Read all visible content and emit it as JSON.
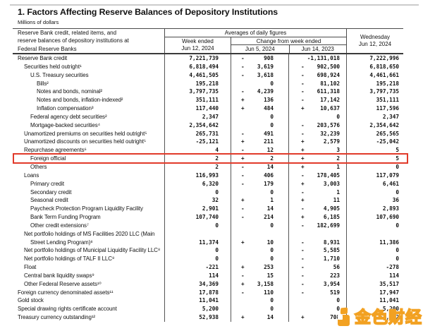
{
  "page": {
    "title": "1. Factors Affecting Reserve Balances of Depository Institutions",
    "units": "Millions of dollars"
  },
  "table": {
    "header": {
      "row_label_lines": [
        "Reserve Bank credit, related items, and",
        "reserve balances of depository institutions at",
        "Federal Reserve Banks"
      ],
      "averages_group": "Averages of daily figures",
      "week_ended_line1": "Week ended",
      "week_ended_line2": "Jun 12, 2024",
      "change_group": "Change from week ended",
      "change_col1": "Jun 5, 2024",
      "change_col2": "Jun 14, 2023",
      "wednesday_line1": "Wednesday",
      "wednesday_line2": "Jun 12, 2024"
    },
    "rows": [
      {
        "label": "Reserve Bank credit",
        "indent": 0,
        "week": "7,221,739",
        "s1": "-",
        "v1": "908",
        "s2": "",
        "v2": "-1,131,018",
        "wed": "7,222,996"
      },
      {
        "label": "Securities held outright¹",
        "indent": 1,
        "week": "6,818,494",
        "s1": "-",
        "v1": "3,619",
        "s2": "-",
        "v2": "902,500",
        "wed": "6,818,650"
      },
      {
        "label": "U.S. Treasury securities",
        "indent": 2,
        "week": "4,461,505",
        "s1": "-",
        "v1": "3,618",
        "s2": "-",
        "v2": "698,924",
        "wed": "4,461,661"
      },
      {
        "label": "Bills²",
        "indent": 3,
        "week": "195,218",
        "s1": "",
        "v1": "0",
        "s2": "-",
        "v2": "81,102",
        "wed": "195,218"
      },
      {
        "label": "Notes and bonds, nominal²",
        "indent": 3,
        "week": "3,797,735",
        "s1": "-",
        "v1": "4,239",
        "s2": "-",
        "v2": "611,318",
        "wed": "3,797,735"
      },
      {
        "label": "Notes and bonds, inflation-indexed²",
        "indent": 3,
        "week": "351,111",
        "s1": "+",
        "v1": "136",
        "s2": "-",
        "v2": "17,142",
        "wed": "351,111"
      },
      {
        "label": "Inflation compensation³",
        "indent": 3,
        "week": "117,440",
        "s1": "+",
        "v1": "484",
        "s2": "+",
        "v2": "10,637",
        "wed": "117,596"
      },
      {
        "label": "Federal agency debt securities²",
        "indent": 2,
        "week": "2,347",
        "s1": "",
        "v1": "0",
        "s2": "",
        "v2": "0",
        "wed": "2,347"
      },
      {
        "label": "Mortgage-backed securities⁴",
        "indent": 2,
        "week": "2,354,642",
        "s1": "",
        "v1": "0",
        "s2": "-",
        "v2": "203,576",
        "wed": "2,354,642"
      },
      {
        "label": "Unamortized premiums on securities held outright⁵",
        "indent": 1,
        "week": "265,731",
        "s1": "-",
        "v1": "491",
        "s2": "-",
        "v2": "32,239",
        "wed": "265,565"
      },
      {
        "label": "Unamortized discounts on securities held outright⁵",
        "indent": 1,
        "week": "-25,121",
        "s1": "+",
        "v1": "211",
        "s2": "+",
        "v2": "2,579",
        "wed": "-25,042"
      },
      {
        "label": "Repurchase agreements⁶",
        "indent": 1,
        "week": "4",
        "s1": "-",
        "v1": "12",
        "s2": "+",
        "v2": "3",
        "wed": "5"
      },
      {
        "label": "Foreign official",
        "indent": 2,
        "week": "2",
        "s1": "+",
        "v1": "2",
        "s2": "+",
        "v2": "2",
        "wed": "5",
        "highlight": true
      },
      {
        "label": "Others",
        "indent": 2,
        "week": "2",
        "s1": "-",
        "v1": "14",
        "s2": "+",
        "v2": "1",
        "wed": "0"
      },
      {
        "label": "Loans",
        "indent": 1,
        "week": "116,993",
        "s1": "-",
        "v1": "406",
        "s2": "-",
        "v2": "178,405",
        "wed": "117,079"
      },
      {
        "label": "Primary credit",
        "indent": 2,
        "week": "6,320",
        "s1": "-",
        "v1": "179",
        "s2": "+",
        "v2": "3,003",
        "wed": "6,461"
      },
      {
        "label": "Secondary credit",
        "indent": 2,
        "week": "0",
        "s1": "",
        "v1": "0",
        "s2": "-",
        "v2": "1",
        "wed": "0"
      },
      {
        "label": "Seasonal credit",
        "indent": 2,
        "week": "32",
        "s1": "+",
        "v1": "1",
        "s2": "+",
        "v2": "11",
        "wed": "36"
      },
      {
        "label": "Paycheck Protection Program Liquidity Facility",
        "indent": 2,
        "week": "2,901",
        "s1": "-",
        "v1": "14",
        "s2": "-",
        "v2": "4,905",
        "wed": "2,893"
      },
      {
        "label": "Bank Term Funding Program",
        "indent": 2,
        "week": "107,740",
        "s1": "-",
        "v1": "214",
        "s2": "+",
        "v2": "6,185",
        "wed": "107,690"
      },
      {
        "label": "Other credit extensions⁷",
        "indent": 2,
        "week": "0",
        "s1": "",
        "v1": "0",
        "s2": "-",
        "v2": "182,699",
        "wed": "0"
      },
      {
        "label": "Net portfolio holdings of MS Facilities 2020 LLC (Main",
        "indent": 1,
        "week": "",
        "s1": "",
        "v1": "",
        "s2": "",
        "v2": "",
        "wed": ""
      },
      {
        "label": "Street Lending Program)⁸",
        "indent": 2,
        "week": "11,374",
        "s1": "+",
        "v1": "10",
        "s2": "-",
        "v2": "8,931",
        "wed": "11,386"
      },
      {
        "label": "Net portfolio holdings of Municipal Liquidity Facility LLC⁸",
        "indent": 1,
        "week": "0",
        "s1": "",
        "v1": "0",
        "s2": "-",
        "v2": "5,585",
        "wed": "0"
      },
      {
        "label": "Net portfolio holdings of TALF II LLC⁸",
        "indent": 1,
        "week": "0",
        "s1": "",
        "v1": "0",
        "s2": "-",
        "v2": "1,710",
        "wed": "0"
      },
      {
        "label": "Float",
        "indent": 1,
        "week": "-221",
        "s1": "+",
        "v1": "253",
        "s2": "-",
        "v2": "56",
        "wed": "-278"
      },
      {
        "label": "Central bank liquidity swaps⁹",
        "indent": 1,
        "week": "114",
        "s1": "-",
        "v1": "15",
        "s2": "-",
        "v2": "223",
        "wed": "114"
      },
      {
        "label": "Other Federal Reserve assets¹⁰",
        "indent": 1,
        "week": "34,369",
        "s1": "+",
        "v1": "3,158",
        "s2": "-",
        "v2": "3,954",
        "wed": "35,517"
      },
      {
        "label": "Foreign currency denominated assets¹¹",
        "indent": 0,
        "week": "17,878",
        "s1": "-",
        "v1": "110",
        "s2": "-",
        "v2": "519",
        "wed": "17,947"
      },
      {
        "label": "Gold stock",
        "indent": 0,
        "week": "11,041",
        "s1": "",
        "v1": "0",
        "s2": "",
        "v2": "0",
        "wed": "11,041"
      },
      {
        "label": "Special drawing rights certificate account",
        "indent": 0,
        "week": "5,200",
        "s1": "",
        "v1": "0",
        "s2": "",
        "v2": "0",
        "wed": "5,200"
      },
      {
        "label": "Treasury currency outstanding¹²",
        "indent": 0,
        "week": "52,938",
        "s1": "+",
        "v1": "14",
        "s2": "+",
        "v2": "708",
        "wed": "52,952"
      }
    ]
  },
  "highlight": {
    "color": "#e13a2a",
    "row": "Foreign official"
  },
  "watermark": {
    "text": "金色财经",
    "color": "#f2a122"
  }
}
